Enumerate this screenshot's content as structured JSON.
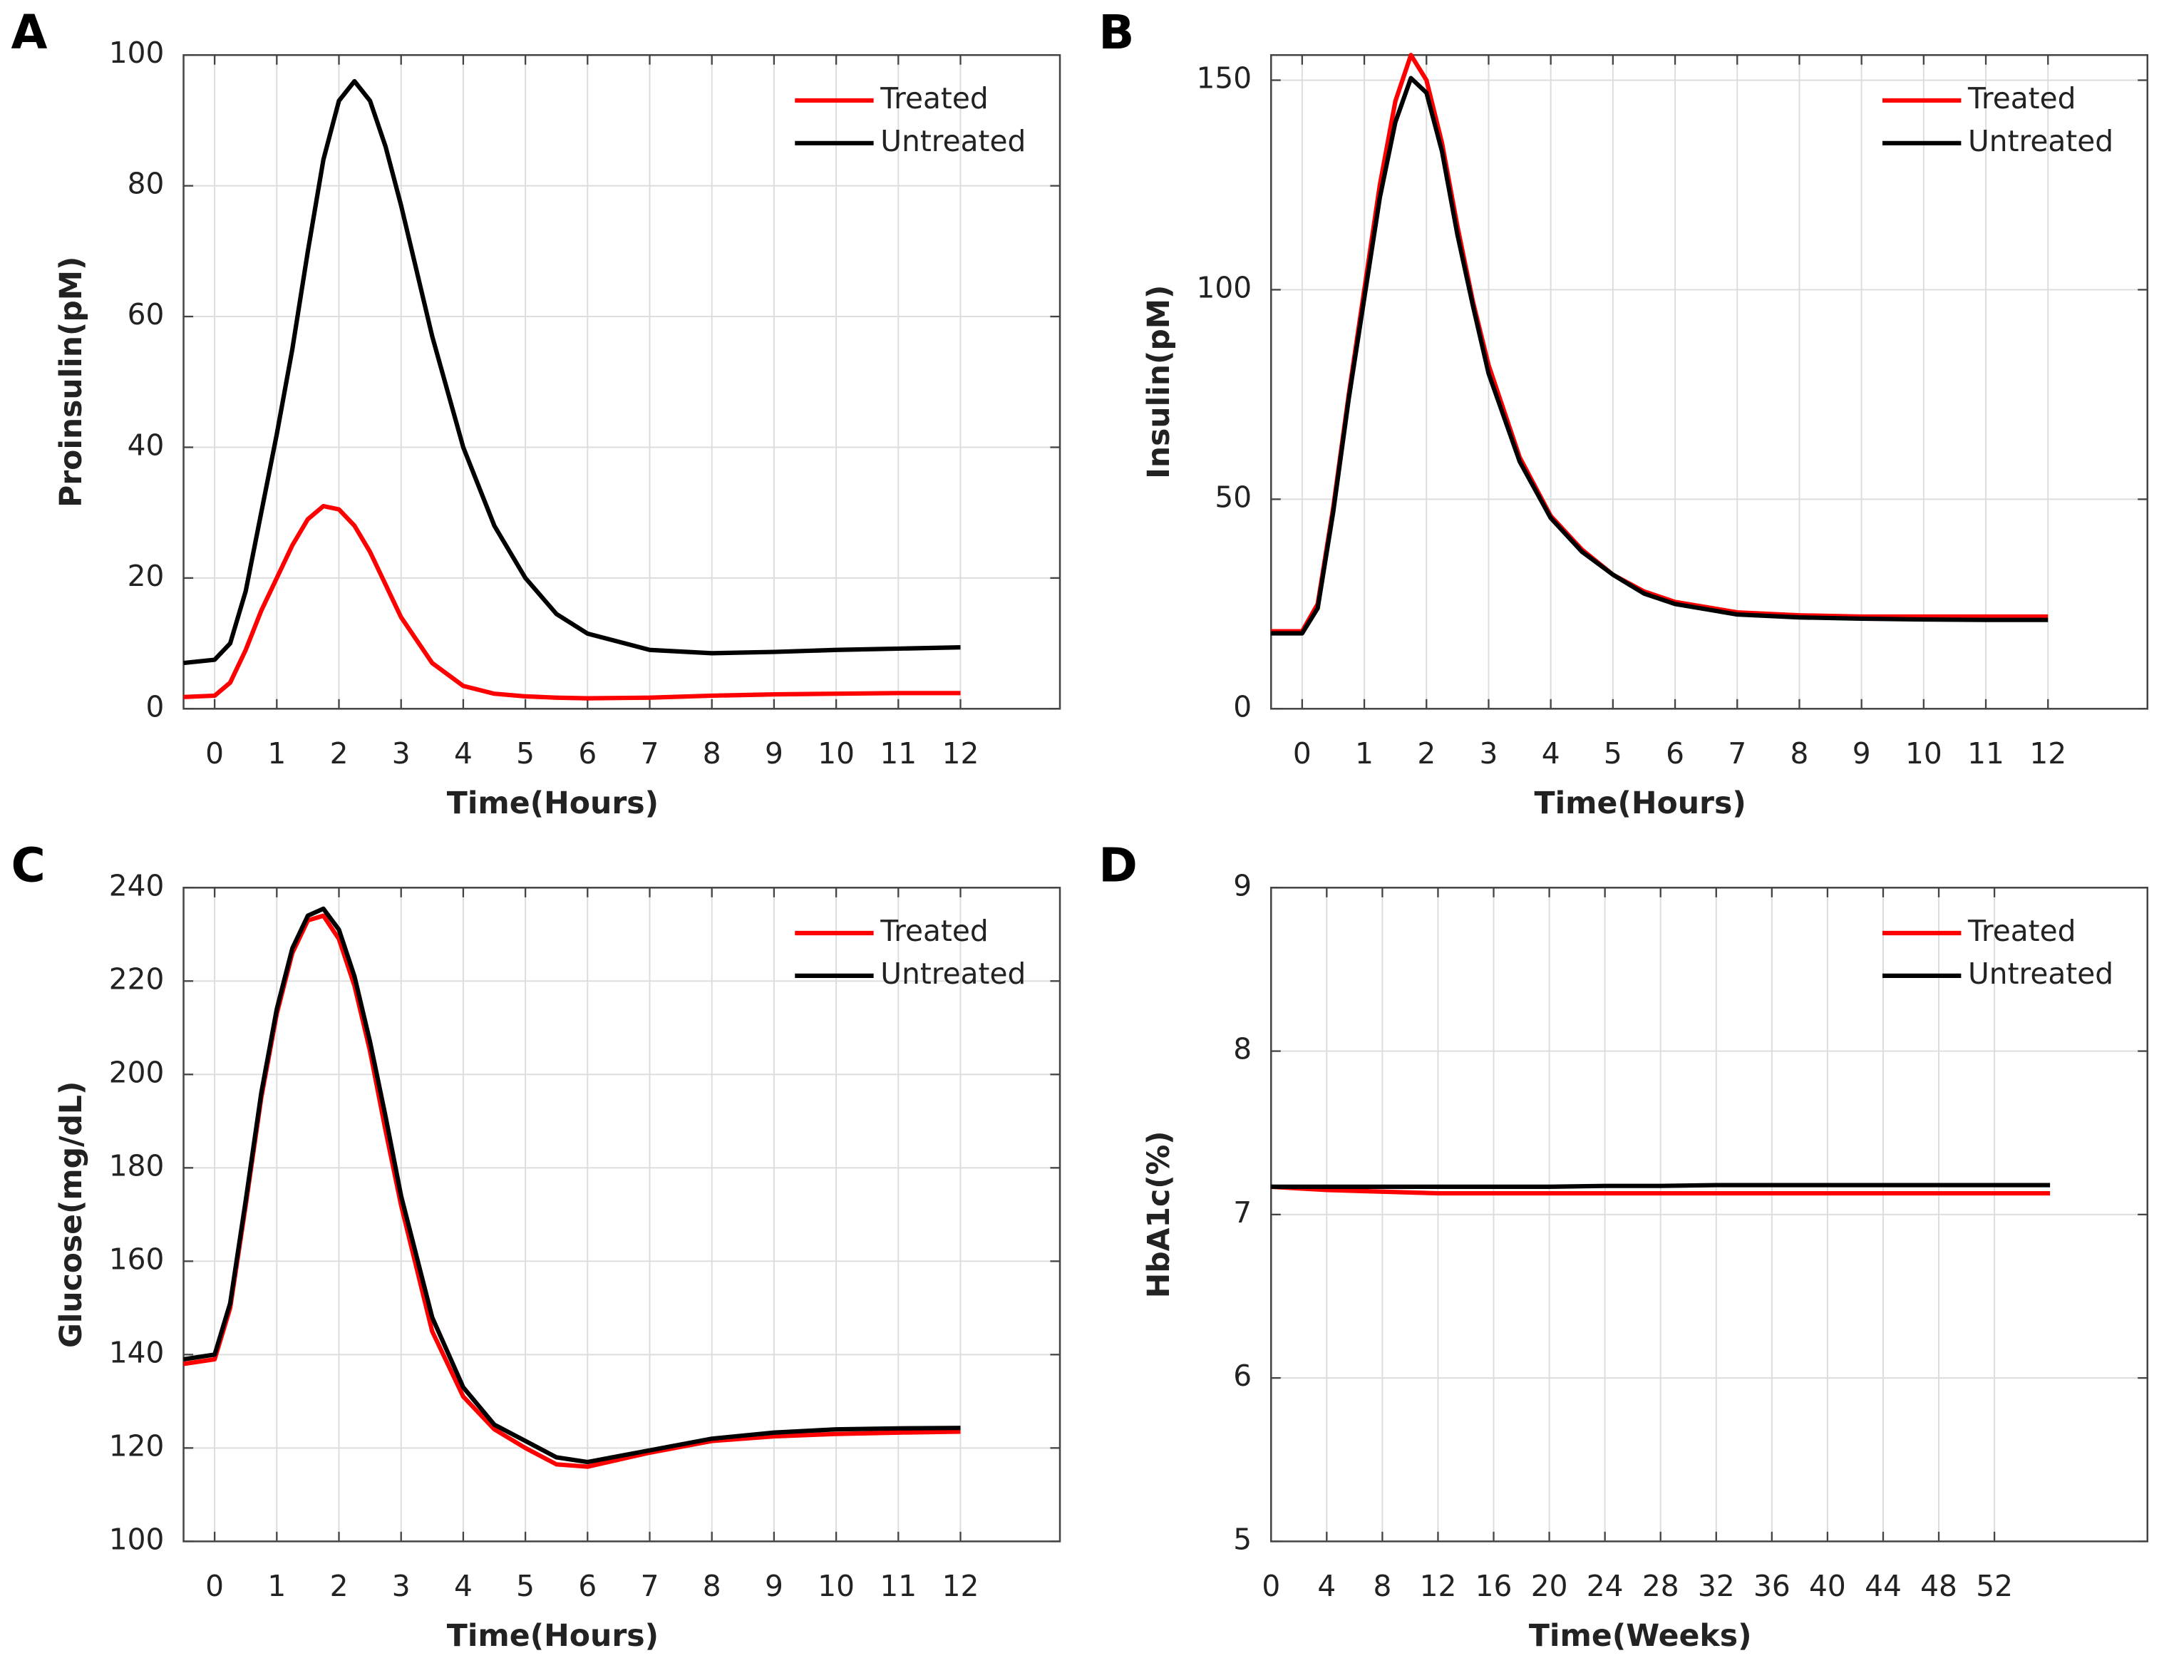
{
  "chart_data": [
    {
      "type": "line",
      "panel_label": "A",
      "xlabel": "Time(Hours)",
      "ylabel": "Proinsulin(pM)",
      "grid": true,
      "legend": "upper right",
      "xlim": [
        -0.5,
        13.6
      ],
      "ylim": [
        0,
        100
      ],
      "xticks": [
        0,
        1,
        2,
        3,
        4,
        5,
        6,
        7,
        8,
        9,
        10,
        11,
        12
      ],
      "yticks": [
        0,
        20,
        40,
        60,
        80,
        100
      ],
      "x": [
        -0.5,
        0,
        0.25,
        0.5,
        0.75,
        1,
        1.25,
        1.5,
        1.75,
        2,
        2.25,
        2.5,
        2.75,
        3,
        3.5,
        4,
        4.5,
        5,
        5.5,
        6,
        7,
        8,
        9,
        10,
        11,
        12
      ],
      "series": [
        {
          "name": "Treated",
          "color": "#ff0000",
          "values": [
            1.8,
            2,
            4,
            9,
            15,
            20,
            25,
            29,
            31,
            30.5,
            28,
            24,
            19,
            14,
            7,
            3.5,
            2.3,
            1.9,
            1.7,
            1.6,
            1.7,
            2,
            2.2,
            2.3,
            2.4,
            2.4
          ]
        },
        {
          "name": "Untreated",
          "color": "#000000",
          "values": [
            7,
            7.5,
            10,
            18,
            30,
            42,
            55,
            70,
            84,
            93,
            96,
            93,
            86,
            77,
            57,
            40,
            28,
            20,
            14.5,
            11.5,
            9,
            8.5,
            8.7,
            9,
            9.2,
            9.4
          ]
        }
      ]
    },
    {
      "type": "line",
      "panel_label": "B",
      "xlabel": "Time(Hours)",
      "ylabel": "Insulin(pM)",
      "grid": true,
      "legend": "upper right",
      "xlim": [
        -0.5,
        13.6
      ],
      "ylim": [
        0,
        156
      ],
      "xticks": [
        0,
        1,
        2,
        3,
        4,
        5,
        6,
        7,
        8,
        9,
        10,
        11,
        12
      ],
      "yticks": [
        0,
        50,
        100,
        150
      ],
      "x": [
        -0.5,
        0,
        0.25,
        0.5,
        0.75,
        1,
        1.25,
        1.5,
        1.75,
        2,
        2.25,
        2.5,
        2.75,
        3,
        3.5,
        4,
        4.5,
        5,
        5.5,
        6,
        7,
        8,
        9,
        10,
        11,
        12
      ],
      "series": [
        {
          "name": "Treated",
          "color": "#ff0000",
          "values": [
            18.5,
            18.5,
            25,
            48,
            75,
            100,
            125,
            145,
            156,
            150,
            135,
            115,
            97,
            82,
            60,
            46,
            38,
            32,
            28,
            25.5,
            23,
            22.3,
            22,
            22,
            22,
            22
          ]
        },
        {
          "name": "Untreated",
          "color": "#000000",
          "values": [
            18,
            18,
            24,
            47,
            74,
            98,
            122,
            140,
            150.5,
            147,
            133,
            113,
            96,
            80,
            59,
            45.5,
            37.5,
            32,
            27.5,
            25,
            22.5,
            21.8,
            21.5,
            21.3,
            21.2,
            21.2
          ]
        }
      ]
    },
    {
      "type": "line",
      "panel_label": "C",
      "xlabel": "Time(Hours)",
      "ylabel": "Glucose(mg/dL)",
      "grid": true,
      "legend": "upper right",
      "xlim": [
        -0.5,
        13.6
      ],
      "ylim": [
        100,
        240
      ],
      "xticks": [
        0,
        1,
        2,
        3,
        4,
        5,
        6,
        7,
        8,
        9,
        10,
        11,
        12
      ],
      "yticks": [
        100,
        120,
        140,
        160,
        180,
        200,
        220,
        240
      ],
      "x": [
        -0.5,
        0,
        0.25,
        0.5,
        0.75,
        1,
        1.25,
        1.5,
        1.75,
        2,
        2.25,
        2.5,
        2.75,
        3,
        3.5,
        4,
        4.5,
        5,
        5.5,
        6,
        7,
        8,
        9,
        10,
        11,
        12
      ],
      "series": [
        {
          "name": "Treated",
          "color": "#ff0000",
          "values": [
            138,
            139,
            150,
            172,
            195,
            213,
            226,
            233,
            234,
            229,
            219,
            205,
            188,
            172,
            145,
            131,
            124,
            120,
            116.5,
            116,
            119,
            121.5,
            122.5,
            123,
            123.3,
            123.5
          ]
        },
        {
          "name": "Untreated",
          "color": "#000000",
          "values": [
            139,
            140,
            151,
            173,
            196,
            214,
            227,
            234,
            235.5,
            231,
            221,
            207,
            191,
            174,
            148,
            133,
            125,
            121.5,
            118,
            117,
            119.5,
            122,
            123.3,
            124,
            124.2,
            124.3
          ]
        }
      ]
    },
    {
      "type": "line",
      "panel_label": "D",
      "xlabel": "Time(Weeks)",
      "ylabel": "HbA1c(%)",
      "grid": true,
      "legend": "upper right",
      "xlim": [
        0,
        63
      ],
      "ylim": [
        5,
        9
      ],
      "xticks": [
        0,
        4,
        8,
        12,
        16,
        20,
        24,
        28,
        32,
        36,
        40,
        44,
        48,
        52
      ],
      "yticks": [
        5,
        6,
        7,
        8,
        9
      ],
      "x": [
        0,
        2,
        4,
        8,
        12,
        16,
        20,
        24,
        28,
        32,
        36,
        40,
        44,
        48,
        52,
        56
      ],
      "series": [
        {
          "name": "Treated",
          "color": "#ff0000",
          "values": [
            7.17,
            7.16,
            7.15,
            7.14,
            7.13,
            7.13,
            7.13,
            7.13,
            7.13,
            7.13,
            7.13,
            7.13,
            7.13,
            7.13,
            7.13,
            7.13
          ]
        },
        {
          "name": "Untreated",
          "color": "#000000",
          "values": [
            7.17,
            7.17,
            7.17,
            7.17,
            7.17,
            7.17,
            7.17,
            7.175,
            7.175,
            7.18,
            7.18,
            7.18,
            7.18,
            7.18,
            7.18,
            7.18
          ]
        }
      ]
    }
  ]
}
